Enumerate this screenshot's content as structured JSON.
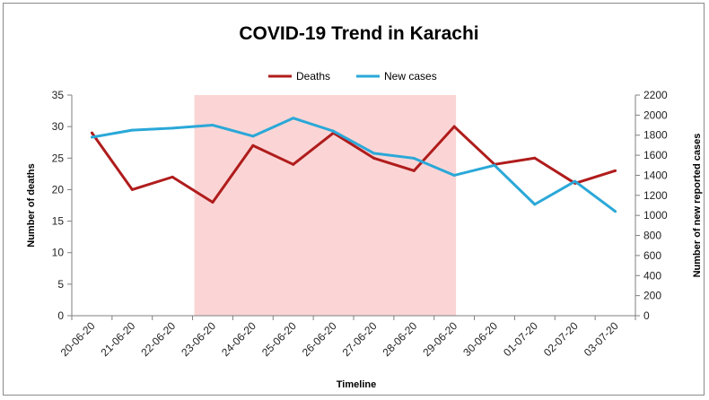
{
  "chart_data": {
    "type": "line",
    "title": "COVID-19 Trend in Karachi",
    "xlabel": "Timeline",
    "ylabel": "Number of deaths",
    "y2label": "Number of new reported cases",
    "categories": [
      "20-06-20",
      "21-06-20",
      "22-06-20",
      "23-06-20",
      "24-06-20",
      "25-06-20",
      "26-06-20",
      "27-06-20",
      "28-06-20",
      "29-06-20",
      "30-06-20",
      "01-07-20",
      "02-07-20",
      "03-07-20"
    ],
    "ylim": [
      0,
      35
    ],
    "yticks": [
      0,
      5,
      10,
      15,
      20,
      25,
      30,
      35
    ],
    "y2lim": [
      0,
      2200
    ],
    "y2ticks": [
      0,
      200,
      400,
      600,
      800,
      1000,
      1200,
      1400,
      1600,
      1800,
      2000,
      2200
    ],
    "series": [
      {
        "name": "Deaths",
        "axis": "left",
        "color": "#b01c1c",
        "values": [
          29,
          20,
          22,
          18,
          27,
          24,
          29,
          25,
          23,
          30,
          24,
          25,
          21,
          23
        ]
      },
      {
        "name": "New cases",
        "axis": "right",
        "color": "#2aa8d8",
        "values": [
          1780,
          1850,
          1870,
          1900,
          1790,
          1970,
          1840,
          1620,
          1570,
          1400,
          1500,
          1110,
          1340,
          1040
        ]
      }
    ],
    "highlight": {
      "from": "23-06-20",
      "to": "29-06-20",
      "color": "#fbd5d5"
    },
    "legend": "top",
    "grid": false
  }
}
